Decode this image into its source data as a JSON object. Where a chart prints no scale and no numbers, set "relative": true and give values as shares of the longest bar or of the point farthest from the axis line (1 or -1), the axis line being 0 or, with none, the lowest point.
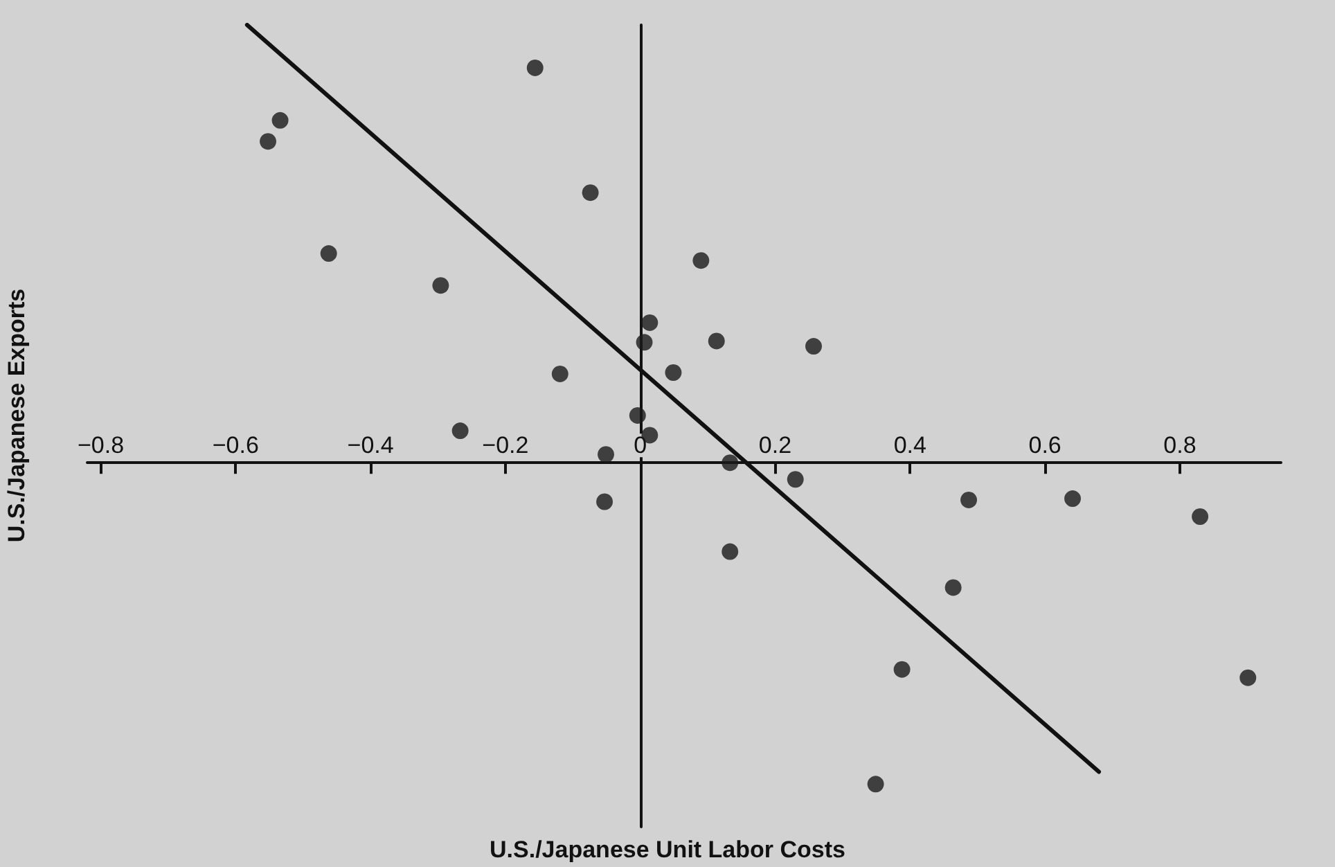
{
  "chart_data": {
    "type": "scatter",
    "xlabel": "U.S./Japanese Unit Labor Costs",
    "ylabel": "U.S./Japanese Exports",
    "relative": true,
    "xlim": [
      -0.82,
      0.95
    ],
    "xticks": [
      -0.8,
      -0.6,
      -0.4,
      -0.2,
      0,
      0.2,
      0.4,
      0.6,
      0.8
    ],
    "marker": "circle",
    "series": [
      {
        "color": "#1a1a1a",
        "x": [
          -0.552,
          -0.534,
          -0.156,
          -0.074,
          -0.462,
          -0.296,
          0.09,
          0.014,
          0.006,
          0.113,
          0.257,
          0.049,
          -0.119,
          -0.004,
          -0.267,
          0.014,
          -0.051,
          0.133,
          0.23,
          -0.053,
          0.487,
          0.641,
          0.83,
          0.133,
          0.464,
          0.388,
          0.901,
          0.349
        ],
        "values": [
          0.734,
          0.782,
          0.902,
          0.617,
          0.478,
          0.405,
          0.462,
          0.32,
          0.275,
          0.278,
          0.266,
          0.206,
          0.203,
          0.108,
          0.073,
          0.063,
          0.019,
          0,
          -0.038,
          -0.089,
          -0.085,
          -0.082,
          -0.123,
          -0.203,
          -0.285,
          -0.472,
          -0.491,
          -0.734
        ]
      },
      {
        "type": "line",
        "color": "#111111",
        "marker": "none",
        "line_style": "solid",
        "x": [
          -0.583,
          0.68
        ],
        "values": [
          1,
          -0.706
        ]
      }
    ]
  }
}
